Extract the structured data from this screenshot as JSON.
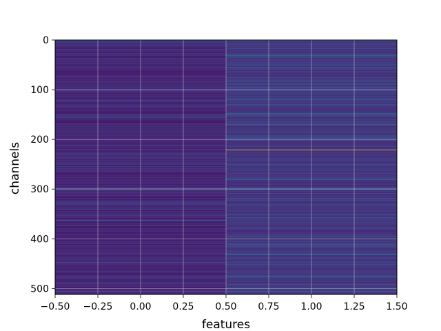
{
  "chart_data": {
    "type": "heatmap",
    "xlabel": "features",
    "ylabel": "channels",
    "xlim": [
      -0.5,
      1.5
    ],
    "ylim": [
      512,
      0
    ],
    "y_inverted": true,
    "grid": true,
    "colormap": "viridis",
    "columns": 2,
    "rows": 512,
    "x_ticks": [
      -0.5,
      -0.25,
      0.0,
      0.25,
      0.5,
      0.75,
      1.0,
      1.25,
      1.5
    ],
    "x_tick_labels": [
      "−0.50",
      "−0.25",
      "0.00",
      "0.25",
      "0.50",
      "0.75",
      "1.00",
      "1.25",
      "1.50"
    ],
    "y_ticks": [
      0,
      100,
      200,
      300,
      400,
      500
    ],
    "y_tick_labels": [
      "0",
      "100",
      "200",
      "300",
      "400",
      "500"
    ],
    "baseline": [
      0.07,
      0.12
    ],
    "highlights": [
      {
        "channel": 1,
        "feature": 0,
        "value": 0.45
      },
      {
        "channel": 1,
        "feature": 1,
        "value": 0.5
      },
      {
        "channel": 30,
        "feature": 1,
        "value": 0.55
      },
      {
        "channel": 55,
        "feature": 0,
        "value": 0.28
      },
      {
        "channel": 58,
        "feature": 1,
        "value": 0.3
      },
      {
        "channel": 83,
        "feature": 1,
        "value": 0.35
      },
      {
        "channel": 100,
        "feature": 0,
        "value": 0.22
      },
      {
        "channel": 120,
        "feature": 1,
        "value": 0.28
      },
      {
        "channel": 148,
        "feature": 1,
        "value": 0.5
      },
      {
        "channel": 155,
        "feature": 0,
        "value": 0.35
      },
      {
        "channel": 170,
        "feature": 1,
        "value": 0.3
      },
      {
        "channel": 200,
        "feature": 0,
        "value": 0.25
      },
      {
        "channel": 221,
        "feature": 1,
        "value": 0.95
      },
      {
        "channel": 250,
        "feature": 1,
        "value": 0.3
      },
      {
        "channel": 280,
        "feature": 1,
        "value": 0.3
      },
      {
        "channel": 299,
        "feature": 0,
        "value": 0.5
      },
      {
        "channel": 299,
        "feature": 1,
        "value": 0.4
      },
      {
        "channel": 318,
        "feature": 1,
        "value": 0.3
      },
      {
        "channel": 340,
        "feature": 0,
        "value": 0.22
      },
      {
        "channel": 362,
        "feature": 0,
        "value": 0.3
      },
      {
        "channel": 372,
        "feature": 0,
        "value": 0.35
      },
      {
        "channel": 395,
        "feature": 1,
        "value": 0.5
      },
      {
        "channel": 430,
        "feature": 1,
        "value": 0.45
      },
      {
        "channel": 475,
        "feature": 1,
        "value": 0.5
      },
      {
        "channel": 505,
        "feature": 0,
        "value": 0.3
      },
      {
        "channel": 505,
        "feature": 1,
        "value": 0.4
      }
    ]
  }
}
